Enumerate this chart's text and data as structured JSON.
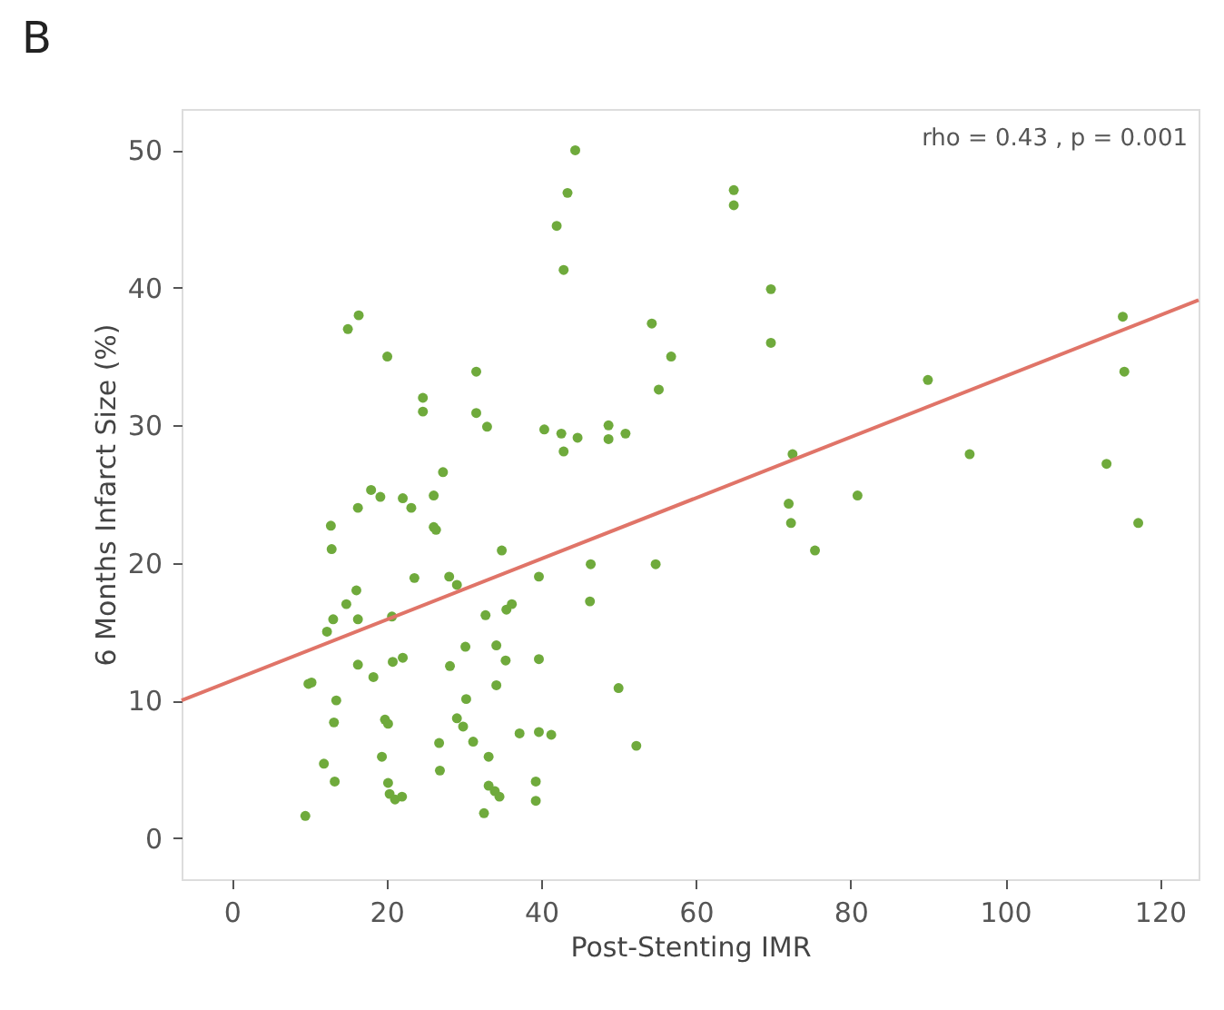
{
  "chart_data": {
    "type": "scatter",
    "title": "B",
    "xlabel": "Post-Stenting IMR",
    "ylabel": "6 Months Infarct Size (%)",
    "annotations": [
      "rho = 0.43 , p = 0.001"
    ],
    "xlim": [
      -6.5,
      125
    ],
    "ylim": [
      -3,
      53
    ],
    "xticks": [
      0,
      20,
      40,
      60,
      80,
      100,
      120
    ],
    "yticks": [
      0,
      10,
      20,
      30,
      40,
      50
    ],
    "grid": false,
    "series": [
      {
        "color": "#6faa3c",
        "marker": "circle",
        "x": [
          44.4,
          43.4,
          42.0,
          42.9,
          64.9,
          64.9,
          69.7,
          69.7,
          54.3,
          56.8,
          55.2,
          40.4,
          42.6,
          42.9,
          44.7,
          48.7,
          48.7,
          50.9,
          90.0,
          95.4,
          72.5,
          72.0,
          72.3,
          75.4,
          80.9,
          113.1,
          115.2,
          115.4,
          117.2,
          39.7,
          46.4,
          46.3,
          54.8,
          50.0,
          52.3,
          34.9,
          35.5,
          36.2,
          32.8,
          35.4,
          34.2,
          34.2,
          39.7,
          37.2,
          39.7,
          41.3,
          39.3,
          39.3,
          33.2,
          33.2,
          34.0,
          34.6,
          32.6,
          31.6,
          31.6,
          33.0,
          24.7,
          24.7,
          27.3,
          26.1,
          26.1,
          26.4,
          22.1,
          23.2,
          18.0,
          19.2,
          20.1,
          16.4,
          15.0,
          16.3,
          23.6,
          28.1,
          29.1,
          12.8,
          12.9,
          16.1,
          14.8,
          16.3,
          13.1,
          12.3,
          20.7,
          16.3,
          18.3,
          20.8,
          22.1,
          28.2,
          30.2,
          30.3,
          29.1,
          29.9,
          31.2,
          26.8,
          26.9,
          9.9,
          10.3,
          13.5,
          13.2,
          11.9,
          13.3,
          9.5,
          19.8,
          20.2,
          19.4,
          20.2,
          20.4,
          21.1,
          22.0
        ],
        "values": [
          50,
          46.9,
          44.5,
          41.3,
          47.1,
          46.0,
          39.9,
          36.0,
          37.4,
          35.0,
          32.6,
          29.7,
          29.4,
          28.1,
          29.1,
          30.0,
          29.0,
          29.4,
          33.3,
          27.9,
          27.9,
          24.3,
          22.9,
          20.9,
          24.9,
          27.2,
          37.9,
          33.9,
          22.9,
          19.0,
          19.9,
          17.2,
          19.9,
          10.9,
          6.7,
          20.9,
          16.6,
          17.0,
          16.2,
          12.9,
          14.0,
          11.1,
          13.0,
          7.6,
          7.7,
          7.5,
          4.1,
          2.7,
          5.9,
          3.8,
          3.4,
          3.0,
          1.8,
          33.9,
          30.9,
          29.9,
          32.0,
          31.0,
          26.6,
          24.9,
          22.6,
          22.4,
          24.7,
          24.0,
          25.3,
          24.8,
          35.0,
          38.0,
          37.0,
          24.0,
          18.9,
          19.0,
          18.4,
          22.7,
          21.0,
          18.0,
          17.0,
          15.9,
          15.9,
          15.0,
          16.1,
          12.6,
          11.7,
          12.8,
          13.1,
          12.5,
          13.9,
          10.1,
          8.7,
          8.1,
          7.0,
          6.9,
          4.9,
          11.2,
          11.3,
          10.0,
          8.4,
          5.4,
          4.1,
          1.6,
          8.6,
          8.3,
          5.9,
          4.0,
          3.2,
          2.8,
          3.0
        ]
      },
      {
        "type": "line",
        "color": "#e07468",
        "marker": "none",
        "line_style": "solid",
        "x": [
          -6.5,
          125
        ],
        "values": [
          10.0,
          39.1
        ]
      }
    ]
  }
}
